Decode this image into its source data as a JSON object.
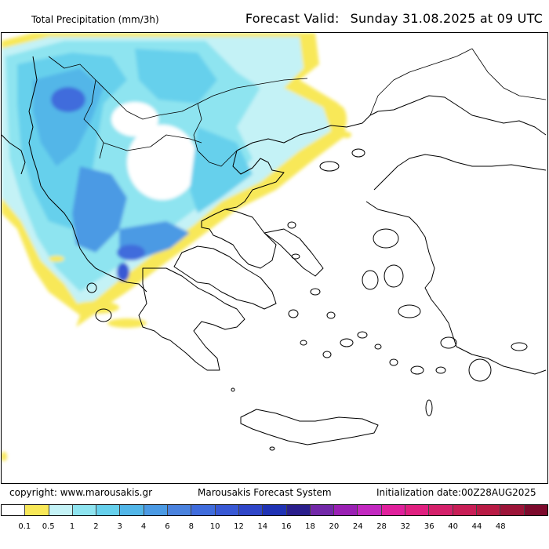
{
  "header": {
    "title": "Total Precipitation (mm/3h)",
    "forecast_label": "Forecast Valid:",
    "forecast_value": "Sunday 31.08.2025 at 09 UTC"
  },
  "footer": {
    "copyright": "copyright: www.marousakis.gr",
    "system": "Marousakis Forecast System",
    "init": "Initialization date:00Z28AUG2025"
  },
  "legend": {
    "colors": [
      "#ffffff",
      "#f8e858",
      "#c4f2f6",
      "#8ee4f0",
      "#66d0ec",
      "#52b6e8",
      "#4b9ae4",
      "#4a82de",
      "#3f6cdc",
      "#3858d4",
      "#2f46c8",
      "#1f32b4",
      "#2a1e8c",
      "#7228a8",
      "#9a20b4",
      "#c228c0",
      "#e0209c",
      "#e02080",
      "#d4206a",
      "#c81e56",
      "#b81a44",
      "#9c1438",
      "#7c0a2c"
    ],
    "ticks": [
      "0.1",
      "0.5",
      "1",
      "2",
      "3",
      "4",
      "6",
      "8",
      "10",
      "12",
      "14",
      "16",
      "18",
      "20",
      "24",
      "28",
      "32",
      "36",
      "40",
      "44",
      "48"
    ]
  }
}
